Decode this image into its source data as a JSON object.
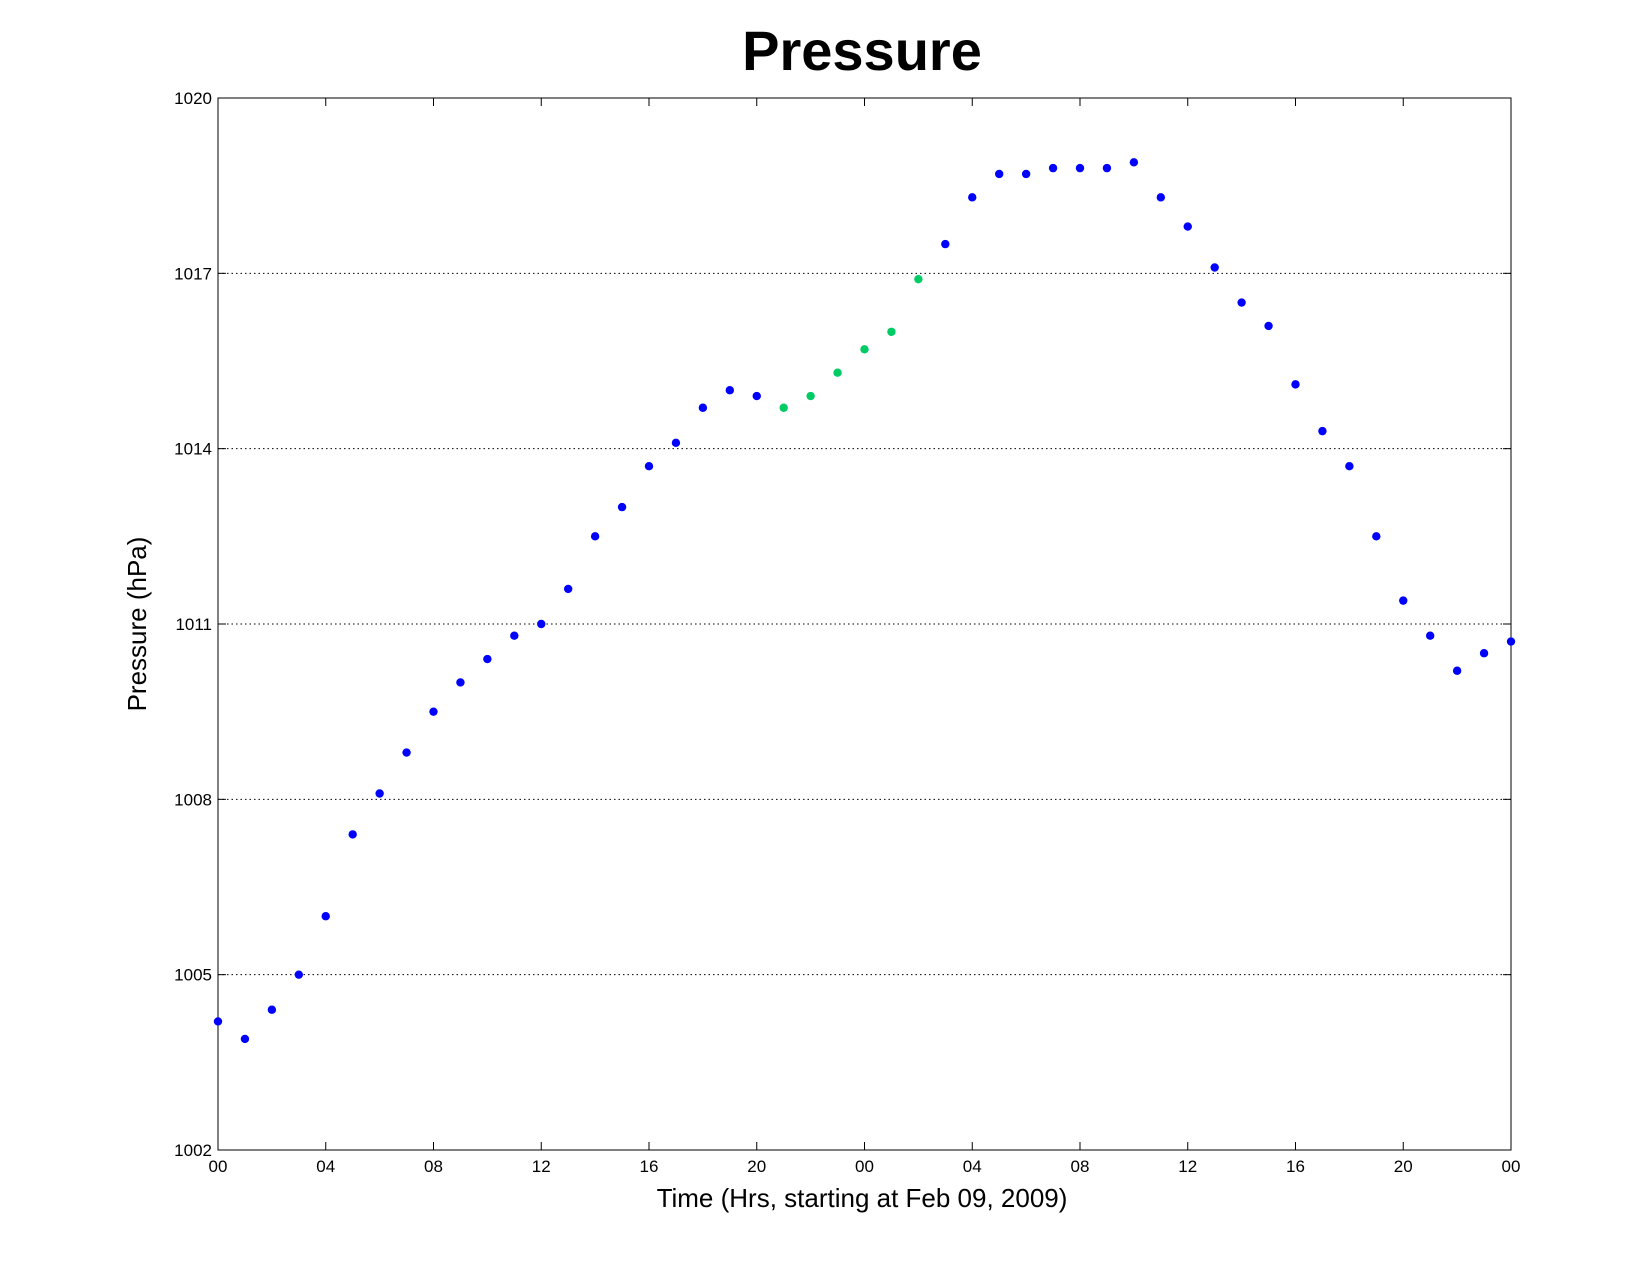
{
  "chart_data": {
    "type": "scatter",
    "title": "Pressure",
    "xlabel": "Time (Hrs, starting at Feb 09, 2009)",
    "ylabel": "Pressure (hPa)",
    "xlim": [
      0,
      48
    ],
    "ylim": [
      1002,
      1020
    ],
    "x_ticks": [
      {
        "x": 0,
        "label": "00"
      },
      {
        "x": 4,
        "label": "04"
      },
      {
        "x": 8,
        "label": "08"
      },
      {
        "x": 12,
        "label": "12"
      },
      {
        "x": 16,
        "label": "16"
      },
      {
        "x": 20,
        "label": "20"
      },
      {
        "x": 24,
        "label": "00"
      },
      {
        "x": 28,
        "label": "04"
      },
      {
        "x": 32,
        "label": "08"
      },
      {
        "x": 36,
        "label": "12"
      },
      {
        "x": 40,
        "label": "16"
      },
      {
        "x": 44,
        "label": "20"
      },
      {
        "x": 48,
        "label": "00"
      }
    ],
    "y_ticks": [
      1002,
      1005,
      1008,
      1011,
      1014,
      1017,
      1020
    ],
    "grid": "horizontal-dotted",
    "colors": {
      "measured": "#0000ff",
      "highlighted": "#00cc66"
    },
    "points": [
      {
        "x": 0,
        "y": 1004.2,
        "color": "#0000ff"
      },
      {
        "x": 1,
        "y": 1003.9,
        "color": "#0000ff"
      },
      {
        "x": 2,
        "y": 1004.4,
        "color": "#0000ff"
      },
      {
        "x": 3,
        "y": 1005.0,
        "color": "#0000ff"
      },
      {
        "x": 4,
        "y": 1006.0,
        "color": "#0000ff"
      },
      {
        "x": 5,
        "y": 1007.4,
        "color": "#0000ff"
      },
      {
        "x": 6,
        "y": 1008.1,
        "color": "#0000ff"
      },
      {
        "x": 7,
        "y": 1008.8,
        "color": "#0000ff"
      },
      {
        "x": 8,
        "y": 1009.5,
        "color": "#0000ff"
      },
      {
        "x": 9,
        "y": 1010.0,
        "color": "#0000ff"
      },
      {
        "x": 10,
        "y": 1010.4,
        "color": "#0000ff"
      },
      {
        "x": 11,
        "y": 1010.8,
        "color": "#0000ff"
      },
      {
        "x": 12,
        "y": 1011.0,
        "color": "#0000ff"
      },
      {
        "x": 13,
        "y": 1011.6,
        "color": "#0000ff"
      },
      {
        "x": 14,
        "y": 1012.5,
        "color": "#0000ff"
      },
      {
        "x": 15,
        "y": 1013.0,
        "color": "#0000ff"
      },
      {
        "x": 16,
        "y": 1013.7,
        "color": "#0000ff"
      },
      {
        "x": 17,
        "y": 1014.1,
        "color": "#0000ff"
      },
      {
        "x": 18,
        "y": 1014.7,
        "color": "#0000ff"
      },
      {
        "x": 19,
        "y": 1015.0,
        "color": "#0000ff"
      },
      {
        "x": 20,
        "y": 1014.9,
        "color": "#0000ff"
      },
      {
        "x": 21,
        "y": 1014.7,
        "color": "#00cc66"
      },
      {
        "x": 22,
        "y": 1014.9,
        "color": "#00cc66"
      },
      {
        "x": 23,
        "y": 1015.3,
        "color": "#00cc66"
      },
      {
        "x": 24,
        "y": 1015.7,
        "color": "#00cc66"
      },
      {
        "x": 25,
        "y": 1016.0,
        "color": "#00cc66"
      },
      {
        "x": 26,
        "y": 1016.9,
        "color": "#00cc66"
      },
      {
        "x": 27,
        "y": 1017.5,
        "color": "#0000ff"
      },
      {
        "x": 28,
        "y": 1018.3,
        "color": "#0000ff"
      },
      {
        "x": 29,
        "y": 1018.7,
        "color": "#0000ff"
      },
      {
        "x": 30,
        "y": 1018.7,
        "color": "#0000ff"
      },
      {
        "x": 31,
        "y": 1018.8,
        "color": "#0000ff"
      },
      {
        "x": 32,
        "y": 1018.8,
        "color": "#0000ff"
      },
      {
        "x": 33,
        "y": 1018.8,
        "color": "#0000ff"
      },
      {
        "x": 34,
        "y": 1018.9,
        "color": "#0000ff"
      },
      {
        "x": 35,
        "y": 1018.3,
        "color": "#0000ff"
      },
      {
        "x": 36,
        "y": 1017.8,
        "color": "#0000ff"
      },
      {
        "x": 37,
        "y": 1017.1,
        "color": "#0000ff"
      },
      {
        "x": 38,
        "y": 1016.5,
        "color": "#0000ff"
      },
      {
        "x": 39,
        "y": 1016.1,
        "color": "#0000ff"
      },
      {
        "x": 40,
        "y": 1015.1,
        "color": "#0000ff"
      },
      {
        "x": 41,
        "y": 1014.3,
        "color": "#0000ff"
      },
      {
        "x": 42,
        "y": 1013.7,
        "color": "#0000ff"
      },
      {
        "x": 43,
        "y": 1012.5,
        "color": "#0000ff"
      },
      {
        "x": 44,
        "y": 1011.4,
        "color": "#0000ff"
      },
      {
        "x": 45,
        "y": 1010.8,
        "color": "#0000ff"
      },
      {
        "x": 46,
        "y": 1010.2,
        "color": "#0000ff"
      },
      {
        "x": 47,
        "y": 1010.5,
        "color": "#0000ff"
      },
      {
        "x": 48,
        "y": 1010.7,
        "color": "#0000ff"
      }
    ]
  }
}
